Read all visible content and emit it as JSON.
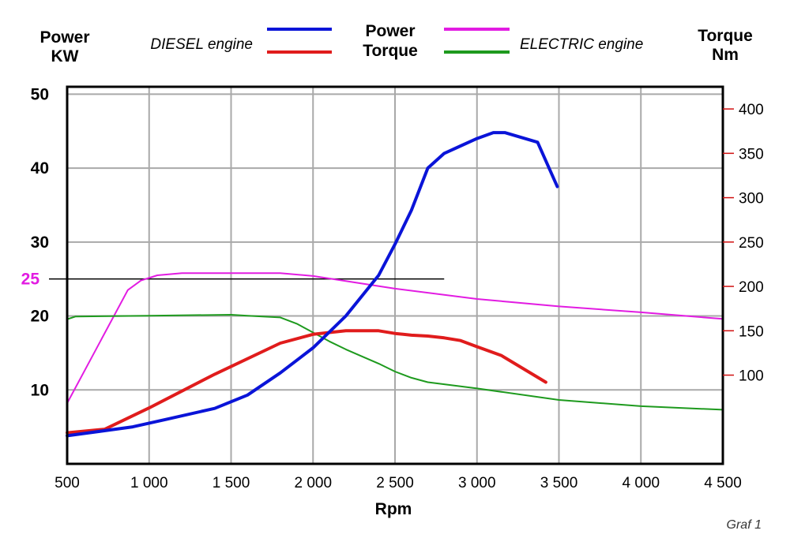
{
  "chart_data": {
    "type": "line",
    "caption": "Graf 1",
    "legend": {
      "diesel_label": "DIESEL engine",
      "electric_label": "ELECTRIC engine",
      "power_label": "Power",
      "torque_label": "Torque"
    },
    "xaxis": {
      "label": "Rpm",
      "range": [
        500,
        4500
      ],
      "ticks": [
        500,
        1000,
        1500,
        2000,
        2500,
        3000,
        3500,
        4000,
        4500
      ],
      "tick_labels": [
        "500",
        "1 000",
        "1 500",
        "2 000",
        "2 500",
        "3 000",
        "3 500",
        "4 000",
        "4 500"
      ]
    },
    "yaxis_left": {
      "label_line1": "Power",
      "label_line2": "KW",
      "range": [
        0,
        51
      ],
      "ticks": [
        10,
        20,
        30,
        40,
        50
      ],
      "tick_labels": [
        "10",
        "20",
        "30",
        "40",
        "50"
      ]
    },
    "yaxis_right": {
      "label_line1": "Torque",
      "label_line2": "Nm",
      "range": [
        0,
        425
      ],
      "ticks": [
        100,
        150,
        200,
        250,
        300,
        350,
        400
      ],
      "tick_labels": [
        "100",
        "150",
        "200",
        "250",
        "300",
        "350",
        "400"
      ]
    },
    "reference_line": {
      "value": 25,
      "label": "25",
      "x_start": 380,
      "x_end": 2800
    },
    "grid": true,
    "series": [
      {
        "key": "diesel_power",
        "axis": "left",
        "color": "#0a14d8",
        "width": 4,
        "x": [
          500,
          900,
          1100,
          1400,
          1600,
          1800,
          2000,
          2200,
          2400,
          2500,
          2600,
          2700,
          2800,
          2900,
          3000,
          3100,
          3170,
          3370,
          3490
        ],
        "y": [
          3.8,
          5.0,
          6.0,
          7.5,
          9.3,
          12.3,
          15.7,
          20.0,
          25.5,
          29.7,
          34.3,
          40.0,
          42.0,
          43.0,
          44.0,
          44.8,
          44.8,
          43.5,
          37.5
        ]
      },
      {
        "key": "diesel_torque",
        "axis": "right",
        "color": "#e01c1c",
        "width": 4,
        "x": [
          500,
          730,
          1000,
          1400,
          1800,
          2000,
          2200,
          2400,
          2500,
          2600,
          2700,
          2800,
          2900,
          3000,
          3150,
          3420
        ],
        "y": [
          35,
          39,
          63,
          101,
          136,
          146,
          150,
          150,
          147,
          145,
          144,
          142,
          139,
          132,
          122,
          92
        ]
      },
      {
        "key": "electric_power",
        "axis": "left",
        "color": "#e21ce2",
        "width": 2,
        "x": [
          500,
          870,
          950,
          1050,
          1200,
          1400,
          1600,
          1800,
          2000,
          2500,
          3000,
          3500,
          4000,
          4500
        ],
        "y": [
          8.2,
          23.5,
          24.8,
          25.5,
          25.8,
          25.8,
          25.8,
          25.8,
          25.4,
          23.7,
          22.3,
          21.3,
          20.5,
          19.6
        ]
      },
      {
        "key": "electric_torque",
        "axis": "right",
        "color": "#1e9a1e",
        "width": 2,
        "x": [
          500,
          550,
          1000,
          1500,
          1600,
          1800,
          1900,
          2000,
          2100,
          2200,
          2300,
          2400,
          2500,
          2600,
          2700,
          3000,
          3500,
          4000,
          4500
        ],
        "y": [
          163,
          166,
          167,
          168,
          167,
          165,
          158,
          148,
          138,
          129,
          121,
          113,
          104,
          97,
          92,
          85,
          72,
          65,
          61
        ]
      }
    ]
  }
}
